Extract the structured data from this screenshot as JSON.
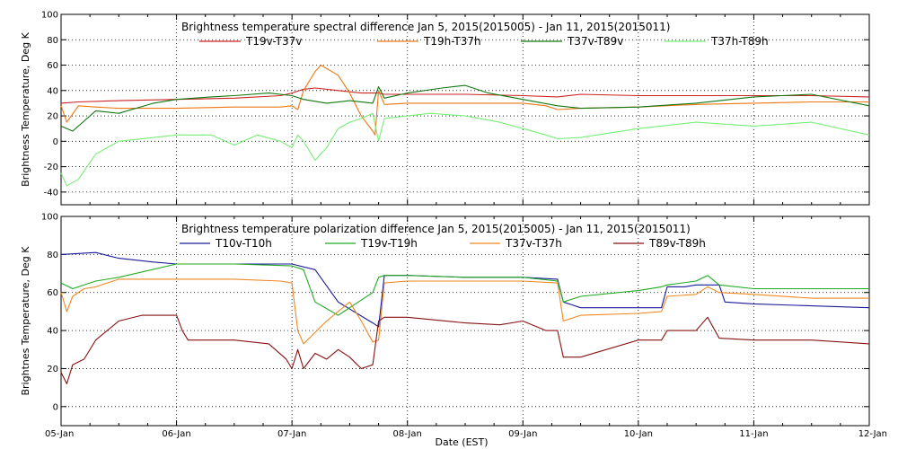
{
  "chart_data": [
    {
      "type": "line",
      "title": "Brightness temperature spectral difference    Jan  5, 2015(2015005) - Jan 11, 2015(2015011)",
      "ylabel": "Brightness Temperature, Deg K",
      "ylim": [
        -50,
        100
      ],
      "yticks": [
        -40,
        -20,
        0,
        20,
        40,
        60,
        80,
        100
      ],
      "xlim": [
        0,
        7
      ],
      "grid": true,
      "legend_position": "top",
      "series": [
        {
          "name": "T19v-T37v",
          "color": "#cc2222",
          "x": [
            0,
            0.15,
            0.5,
            1,
            1.5,
            1.9,
            2,
            2.1,
            2.2,
            2.4,
            2.6,
            2.75,
            2.8,
            3,
            3.5,
            4,
            4.3,
            4.5,
            5,
            5.5,
            6,
            6.5,
            7
          ],
          "y": [
            30,
            31,
            32,
            33,
            34,
            36,
            38,
            41,
            42,
            40,
            38,
            38,
            37,
            37,
            37,
            36,
            35,
            37,
            36,
            36,
            36,
            36,
            35
          ]
        },
        {
          "name": "T19h-T37h",
          "color": "#ee7711",
          "x": [
            0,
            0.05,
            0.15,
            0.3,
            0.5,
            1,
            1.5,
            1.9,
            2,
            2.05,
            2.1,
            2.2,
            2.25,
            2.4,
            2.5,
            2.6,
            2.7,
            2.72,
            2.75,
            2.8,
            3,
            3.5,
            4,
            4.2,
            4.3,
            4.5,
            5,
            5.5,
            6,
            6.5,
            7
          ],
          "y": [
            28,
            15,
            28,
            27,
            26,
            26,
            27,
            27,
            28,
            25,
            40,
            55,
            60,
            52,
            38,
            20,
            8,
            5,
            40,
            29,
            30,
            30,
            30,
            28,
            25,
            26,
            27,
            29,
            30,
            31,
            31
          ]
        },
        {
          "name": "T37v-T89v",
          "color": "#117711",
          "x": [
            0,
            0.1,
            0.3,
            0.5,
            0.8,
            1,
            1.3,
            1.5,
            1.8,
            2,
            2.1,
            2.3,
            2.5,
            2.7,
            2.75,
            2.8,
            3,
            3.3,
            3.5,
            3.7,
            4,
            4.3,
            4.5,
            5,
            5.5,
            6,
            6.5,
            7
          ],
          "y": [
            12,
            8,
            24,
            22,
            30,
            33,
            35,
            36,
            38,
            36,
            33,
            30,
            32,
            30,
            43,
            34,
            38,
            42,
            44,
            38,
            33,
            28,
            26,
            27,
            30,
            35,
            37,
            28
          ]
        },
        {
          "name": "T37h-T89h",
          "color": "#77ee77",
          "x": [
            0,
            0.05,
            0.15,
            0.3,
            0.5,
            1,
            1.3,
            1.5,
            1.7,
            1.9,
            2,
            2.05,
            2.1,
            2.2,
            2.3,
            2.4,
            2.5,
            2.6,
            2.7,
            2.75,
            2.8,
            3,
            3.2,
            3.5,
            3.8,
            4,
            4.2,
            4.3,
            4.5,
            5,
            5.5,
            6,
            6.5,
            7
          ],
          "y": [
            -25,
            -35,
            -30,
            -10,
            0,
            5,
            5,
            -3,
            5,
            0,
            -5,
            5,
            0,
            -15,
            -5,
            10,
            15,
            18,
            22,
            0,
            18,
            20,
            22,
            20,
            15,
            10,
            5,
            2,
            3,
            10,
            15,
            12,
            15,
            5
          ]
        }
      ]
    },
    {
      "type": "line",
      "title": "Brightness temperature polarization difference    Jan  5, 2015(2015005) - Jan 11, 2015(2015011)",
      "ylabel": "Brightnes Temperature, Deg K",
      "xlabel": "Date (EST)",
      "ylim": [
        -10,
        100
      ],
      "yticks": [
        0,
        20,
        40,
        60,
        80,
        100
      ],
      "xlim": [
        0,
        7
      ],
      "xticks": [
        "05-Jan",
        "06-Jan",
        "07-Jan",
        "08-Jan",
        "09-Jan",
        "10-Jan",
        "11-Jan",
        "12-Jan"
      ],
      "grid": true,
      "legend_position": "top",
      "series": [
        {
          "name": "T10v-T10h",
          "color": "#1a1a99",
          "x": [
            0,
            0.3,
            0.5,
            0.8,
            1,
            1.5,
            2,
            2.2,
            2.4,
            2.7,
            2.75,
            2.8,
            3,
            3.5,
            4,
            4.3,
            4.35,
            4.5,
            5,
            5.2,
            5.25,
            5.4,
            5.5,
            5.7,
            5.75,
            6,
            6.5,
            7
          ],
          "y": [
            80,
            81,
            78,
            76,
            75,
            75,
            75,
            72,
            55,
            44,
            42,
            69,
            69,
            68,
            68,
            67,
            55,
            52,
            52,
            52,
            63,
            63,
            64,
            64,
            55,
            54,
            53,
            52
          ]
        },
        {
          "name": "T19v-T19h",
          "color": "#22aa22",
          "x": [
            0,
            0.1,
            0.3,
            0.5,
            1,
            1.5,
            2,
            2.1,
            2.2,
            2.4,
            2.6,
            2.7,
            2.75,
            2.8,
            3,
            3.5,
            4,
            4.3,
            4.35,
            4.5,
            5,
            5.2,
            5.25,
            5.5,
            5.6,
            5.7,
            6,
            6.5,
            7
          ],
          "y": [
            65,
            62,
            66,
            68,
            75,
            75,
            74,
            72,
            55,
            48,
            56,
            60,
            68,
            69,
            69,
            68,
            68,
            66,
            55,
            58,
            61,
            63,
            64,
            66,
            69,
            64,
            62,
            62,
            62
          ]
        },
        {
          "name": "T37v-T37h",
          "color": "#ee8822",
          "x": [
            0,
            0.05,
            0.1,
            0.2,
            0.3,
            0.5,
            1,
            1.5,
            1.9,
            2,
            2.05,
            2.1,
            2.3,
            2.5,
            2.6,
            2.7,
            2.75,
            2.8,
            3,
            3.5,
            4,
            4.3,
            4.35,
            4.5,
            5,
            5.2,
            5.25,
            5.5,
            5.6,
            5.7,
            6,
            6.5,
            7
          ],
          "y": [
            60,
            50,
            58,
            62,
            63,
            67,
            67,
            67,
            66,
            65,
            40,
            33,
            45,
            55,
            45,
            34,
            35,
            65,
            66,
            66,
            66,
            65,
            45,
            48,
            49,
            50,
            58,
            59,
            63,
            60,
            59,
            57,
            57
          ]
        },
        {
          "name": "T89v-T89h",
          "color": "#881111",
          "x": [
            0,
            0.05,
            0.1,
            0.2,
            0.3,
            0.4,
            0.5,
            0.7,
            1,
            1.05,
            1.1,
            1.2,
            1.5,
            1.8,
            1.95,
            2,
            2.05,
            2.1,
            2.2,
            2.3,
            2.4,
            2.5,
            2.6,
            2.7,
            2.75,
            2.8,
            3,
            3.5,
            3.8,
            4,
            4.2,
            4.3,
            4.35,
            4.5,
            5,
            5.2,
            5.25,
            5.4,
            5.5,
            5.6,
            5.7,
            6,
            6.5,
            7
          ],
          "y": [
            18,
            12,
            22,
            25,
            35,
            40,
            45,
            48,
            48,
            40,
            35,
            35,
            35,
            33,
            25,
            20,
            30,
            20,
            28,
            25,
            30,
            26,
            20,
            22,
            45,
            47,
            47,
            44,
            43,
            45,
            40,
            40,
            26,
            26,
            35,
            35,
            40,
            40,
            40,
            47,
            36,
            35,
            35,
            33
          ]
        }
      ]
    }
  ]
}
